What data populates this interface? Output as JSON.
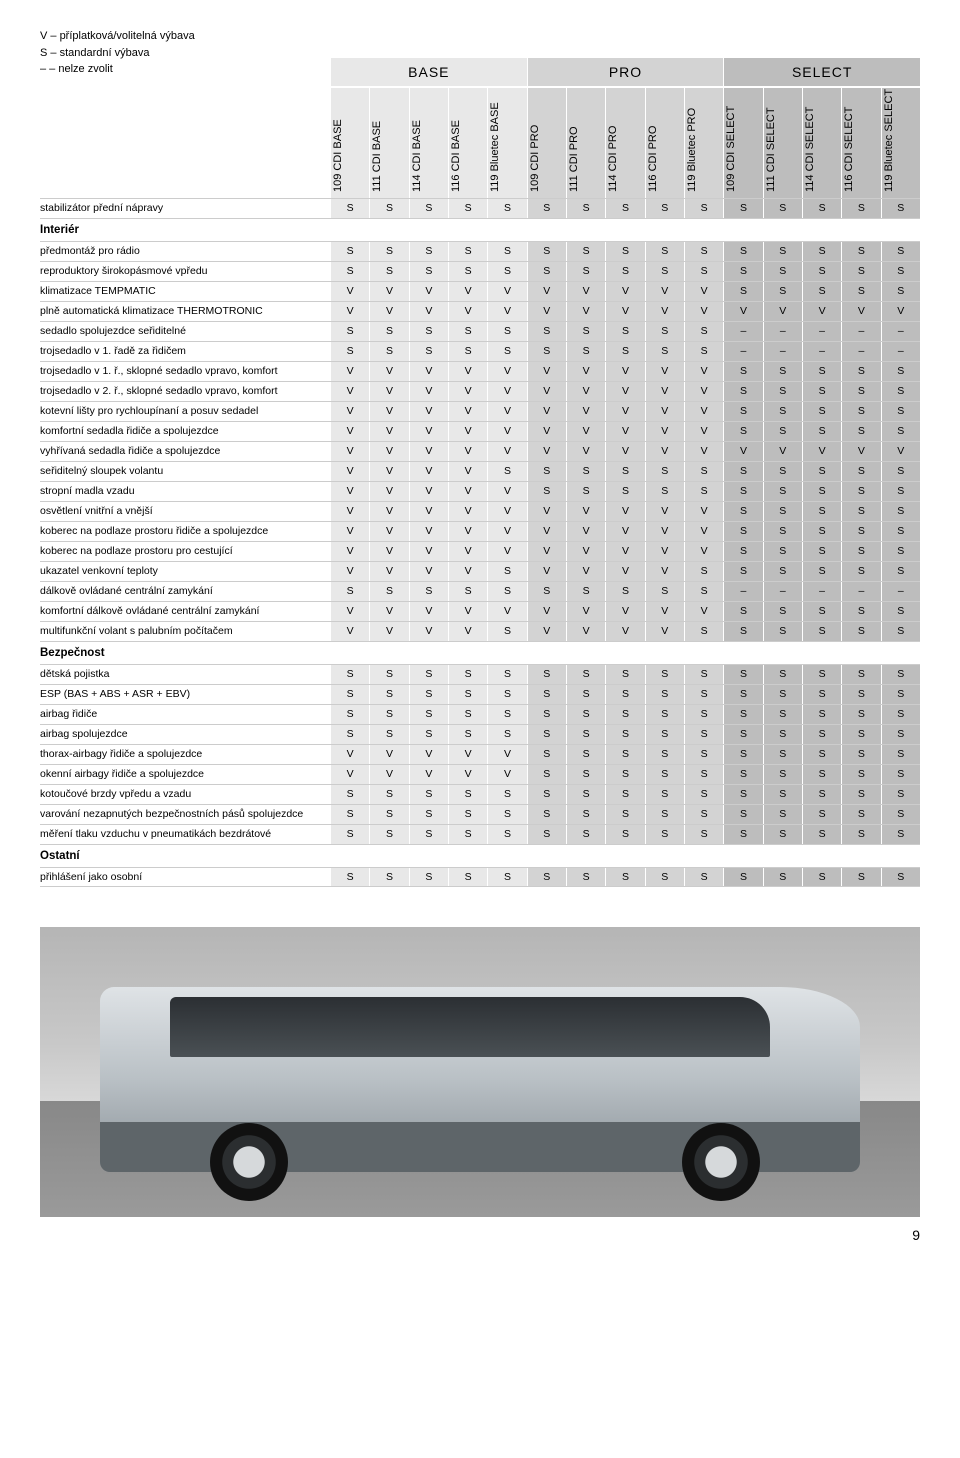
{
  "legend": [
    "V – příplatková/volitelná výbava",
    "S – standardní výbava",
    "– – nelze zvolit"
  ],
  "groups": [
    {
      "label": "BASE",
      "cls": "base",
      "cols": [
        "109 CDI BASE",
        "111 CDI BASE",
        "114 CDI BASE",
        "116 CDI BASE",
        "119 Bluetec BASE"
      ]
    },
    {
      "label": "PRO",
      "cls": "pro",
      "cols": [
        "109 CDI PRO",
        "111 CDI PRO",
        "114 CDI PRO",
        "116 CDI PRO",
        "119 Bluetec PRO"
      ]
    },
    {
      "label": "SELECT",
      "cls": "select",
      "cols": [
        "109 CDI SELECT",
        "111 CDI SELECT",
        "114 CDI SELECT",
        "116 CDI SELECT",
        "119 Bluetec SELECT"
      ]
    }
  ],
  "rows": [
    {
      "label": "stabilizátor přední nápravy",
      "vals": [
        "S",
        "S",
        "S",
        "S",
        "S",
        "S",
        "S",
        "S",
        "S",
        "S",
        "S",
        "S",
        "S",
        "S",
        "S"
      ]
    },
    {
      "label": "Interiér",
      "section": true
    },
    {
      "label": "předmontáž pro rádio",
      "vals": [
        "S",
        "S",
        "S",
        "S",
        "S",
        "S",
        "S",
        "S",
        "S",
        "S",
        "S",
        "S",
        "S",
        "S",
        "S"
      ]
    },
    {
      "label": "reproduktory širokopásmové vpředu",
      "vals": [
        "S",
        "S",
        "S",
        "S",
        "S",
        "S",
        "S",
        "S",
        "S",
        "S",
        "S",
        "S",
        "S",
        "S",
        "S"
      ]
    },
    {
      "label": "klimatizace TEMPMATIC",
      "vals": [
        "V",
        "V",
        "V",
        "V",
        "V",
        "V",
        "V",
        "V",
        "V",
        "V",
        "S",
        "S",
        "S",
        "S",
        "S"
      ]
    },
    {
      "label": "plně automatická klimatizace THERMOTRONIC",
      "vals": [
        "V",
        "V",
        "V",
        "V",
        "V",
        "V",
        "V",
        "V",
        "V",
        "V",
        "V",
        "V",
        "V",
        "V",
        "V"
      ]
    },
    {
      "label": "sedadlo spolujezdce seřiditelné",
      "vals": [
        "S",
        "S",
        "S",
        "S",
        "S",
        "S",
        "S",
        "S",
        "S",
        "S",
        "–",
        "–",
        "–",
        "–",
        "–"
      ]
    },
    {
      "label": "trojsedadlo v 1. řadě za řidičem",
      "vals": [
        "S",
        "S",
        "S",
        "S",
        "S",
        "S",
        "S",
        "S",
        "S",
        "S",
        "–",
        "–",
        "–",
        "–",
        "–"
      ]
    },
    {
      "label": "trojsedadlo v 1. ř., sklopné sedadlo vpravo, komfort",
      "vals": [
        "V",
        "V",
        "V",
        "V",
        "V",
        "V",
        "V",
        "V",
        "V",
        "V",
        "S",
        "S",
        "S",
        "S",
        "S"
      ]
    },
    {
      "label": "trojsedadlo v 2. ř., sklopné sedadlo vpravo, komfort",
      "vals": [
        "V",
        "V",
        "V",
        "V",
        "V",
        "V",
        "V",
        "V",
        "V",
        "V",
        "S",
        "S",
        "S",
        "S",
        "S"
      ]
    },
    {
      "label": "kotevní lišty pro rychloupínaní a posuv sedadel",
      "vals": [
        "V",
        "V",
        "V",
        "V",
        "V",
        "V",
        "V",
        "V",
        "V",
        "V",
        "S",
        "S",
        "S",
        "S",
        "S"
      ]
    },
    {
      "label": "komfortní sedadla řidiče a spolujezdce",
      "vals": [
        "V",
        "V",
        "V",
        "V",
        "V",
        "V",
        "V",
        "V",
        "V",
        "V",
        "S",
        "S",
        "S",
        "S",
        "S"
      ]
    },
    {
      "label": "vyhřívaná sedadla řidiče a spolujezdce",
      "vals": [
        "V",
        "V",
        "V",
        "V",
        "V",
        "V",
        "V",
        "V",
        "V",
        "V",
        "V",
        "V",
        "V",
        "V",
        "V"
      ]
    },
    {
      "label": "seřiditelný sloupek volantu",
      "vals": [
        "V",
        "V",
        "V",
        "V",
        "S",
        "S",
        "S",
        "S",
        "S",
        "S",
        "S",
        "S",
        "S",
        "S",
        "S"
      ]
    },
    {
      "label": "stropní madla vzadu",
      "vals": [
        "V",
        "V",
        "V",
        "V",
        "V",
        "S",
        "S",
        "S",
        "S",
        "S",
        "S",
        "S",
        "S",
        "S",
        "S"
      ]
    },
    {
      "label": "osvětlení vnitřní a vnější",
      "vals": [
        "V",
        "V",
        "V",
        "V",
        "V",
        "V",
        "V",
        "V",
        "V",
        "V",
        "S",
        "S",
        "S",
        "S",
        "S"
      ]
    },
    {
      "label": "koberec na podlaze prostoru řidiče a spolujezdce",
      "vals": [
        "V",
        "V",
        "V",
        "V",
        "V",
        "V",
        "V",
        "V",
        "V",
        "V",
        "S",
        "S",
        "S",
        "S",
        "S"
      ]
    },
    {
      "label": "koberec na podlaze prostoru pro cestující",
      "vals": [
        "V",
        "V",
        "V",
        "V",
        "V",
        "V",
        "V",
        "V",
        "V",
        "V",
        "S",
        "S",
        "S",
        "S",
        "S"
      ]
    },
    {
      "label": "ukazatel venkovní teploty",
      "vals": [
        "V",
        "V",
        "V",
        "V",
        "S",
        "V",
        "V",
        "V",
        "V",
        "S",
        "S",
        "S",
        "S",
        "S",
        "S"
      ]
    },
    {
      "label": "dálkově ovládané centrální zamykání",
      "vals": [
        "S",
        "S",
        "S",
        "S",
        "S",
        "S",
        "S",
        "S",
        "S",
        "S",
        "–",
        "–",
        "–",
        "–",
        "–"
      ]
    },
    {
      "label": "komfortní dálkově ovládané centrální zamykání",
      "vals": [
        "V",
        "V",
        "V",
        "V",
        "V",
        "V",
        "V",
        "V",
        "V",
        "V",
        "S",
        "S",
        "S",
        "S",
        "S"
      ]
    },
    {
      "label": "multifunkční volant s palubním počítačem",
      "vals": [
        "V",
        "V",
        "V",
        "V",
        "S",
        "V",
        "V",
        "V",
        "V",
        "S",
        "S",
        "S",
        "S",
        "S",
        "S"
      ]
    },
    {
      "label": "Bezpečnost",
      "section": true
    },
    {
      "label": "dětská pojistka",
      "vals": [
        "S",
        "S",
        "S",
        "S",
        "S",
        "S",
        "S",
        "S",
        "S",
        "S",
        "S",
        "S",
        "S",
        "S",
        "S"
      ]
    },
    {
      "label": "ESP (BAS + ABS + ASR + EBV)",
      "vals": [
        "S",
        "S",
        "S",
        "S",
        "S",
        "S",
        "S",
        "S",
        "S",
        "S",
        "S",
        "S",
        "S",
        "S",
        "S"
      ]
    },
    {
      "label": "airbag řidiče",
      "vals": [
        "S",
        "S",
        "S",
        "S",
        "S",
        "S",
        "S",
        "S",
        "S",
        "S",
        "S",
        "S",
        "S",
        "S",
        "S"
      ]
    },
    {
      "label": "airbag spolujezdce",
      "vals": [
        "S",
        "S",
        "S",
        "S",
        "S",
        "S",
        "S",
        "S",
        "S",
        "S",
        "S",
        "S",
        "S",
        "S",
        "S"
      ]
    },
    {
      "label": "thorax-airbagy řidiče a spolujezdce",
      "vals": [
        "V",
        "V",
        "V",
        "V",
        "V",
        "S",
        "S",
        "S",
        "S",
        "S",
        "S",
        "S",
        "S",
        "S",
        "S"
      ]
    },
    {
      "label": "okenní airbagy řidiče a spolujezdce",
      "vals": [
        "V",
        "V",
        "V",
        "V",
        "V",
        "S",
        "S",
        "S",
        "S",
        "S",
        "S",
        "S",
        "S",
        "S",
        "S"
      ]
    },
    {
      "label": "kotoučové brzdy vpředu a vzadu",
      "vals": [
        "S",
        "S",
        "S",
        "S",
        "S",
        "S",
        "S",
        "S",
        "S",
        "S",
        "S",
        "S",
        "S",
        "S",
        "S"
      ]
    },
    {
      "label": "varování nezapnutých bezpečnostních pásů spolujezdce",
      "vals": [
        "S",
        "S",
        "S",
        "S",
        "S",
        "S",
        "S",
        "S",
        "S",
        "S",
        "S",
        "S",
        "S",
        "S",
        "S"
      ]
    },
    {
      "label": "měření tlaku vzduchu v pneumatikách bezdrátové",
      "vals": [
        "S",
        "S",
        "S",
        "S",
        "S",
        "S",
        "S",
        "S",
        "S",
        "S",
        "S",
        "S",
        "S",
        "S",
        "S"
      ]
    },
    {
      "label": "Ostatní",
      "section": true
    },
    {
      "label": "přihlášení jako osobní",
      "vals": [
        "S",
        "S",
        "S",
        "S",
        "S",
        "S",
        "S",
        "S",
        "S",
        "S",
        "S",
        "S",
        "S",
        "S",
        "S"
      ]
    }
  ],
  "page_number": "9"
}
